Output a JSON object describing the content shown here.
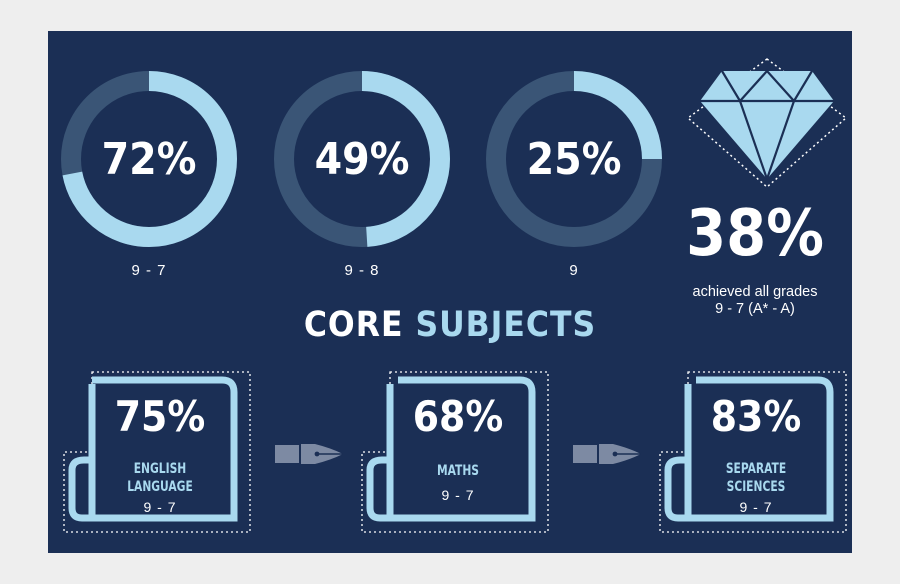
{
  "rings": [
    {
      "percent": "72%",
      "fraction": 0.72,
      "label": "9 - 7"
    },
    {
      "percent": "49%",
      "fraction": 0.49,
      "label": "9 - 8"
    },
    {
      "percent": "25%",
      "fraction": 0.25,
      "label": "9"
    }
  ],
  "diamond": {
    "percent": "38%",
    "caption_line1": "achieved all grades",
    "caption_line2": "9 - 7 (A* - A)"
  },
  "heading": {
    "word1": "CORE",
    "word2": "SUBJECTS"
  },
  "subjects": [
    {
      "percent": "75%",
      "name_line1": "ENGLISH",
      "name_line2": "LANGUAGE",
      "grade": "9 - 7"
    },
    {
      "percent": "68%",
      "name_line1": "MATHS",
      "name_line2": "",
      "grade": "9 - 7"
    },
    {
      "percent": "83%",
      "name_line1": "SEPARATE",
      "name_line2": "SCIENCES",
      "grade": "9 - 7"
    }
  ],
  "colors": {
    "background": "#1b2f55",
    "outer": "#eeeeee",
    "accent": "#a9d9ef",
    "ring_track": "#3a5576",
    "white": "#ffffff",
    "pen": "#7d8aa3"
  },
  "icons": {
    "diamond": "diamond-icon",
    "pen": "fountain-pen-nib-icon",
    "scroll": "scroll-icon"
  }
}
